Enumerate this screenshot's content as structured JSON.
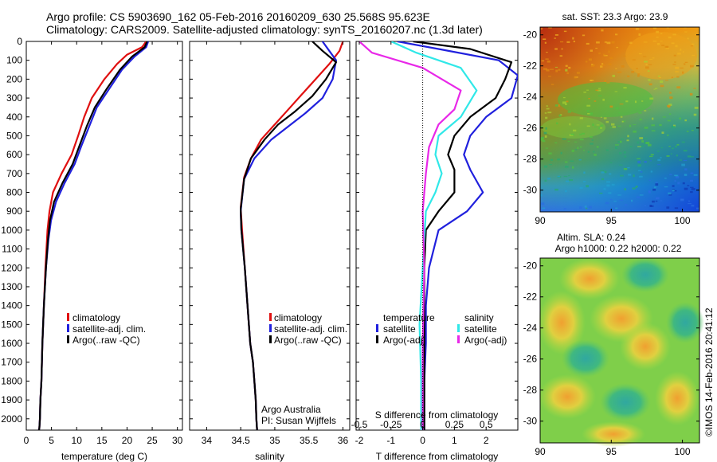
{
  "header": {
    "line1": "Argo profile: CS 5903690_162 05-Feb-2016 20160209_630 25.568S 95.623E",
    "line2": "Climatology: CARS2009. Satellite-adjusted climatology: synTS_20160207.nc (1.3d later)"
  },
  "colors": {
    "climatology": "#e01010",
    "satellite": "#2020dd",
    "argo": "#000000",
    "satellite_salinity": "#30e8e8",
    "argo_salinity": "#e828e8"
  },
  "chart_data": [
    {
      "type": "line",
      "panel": "temperature",
      "xlabel": "temperature (deg C)",
      "ylabel": "",
      "xlim": [
        0,
        31
      ],
      "ylim": [
        2060,
        0
      ],
      "xticks": [
        "0",
        "5",
        "10",
        "15",
        "20",
        "25",
        "30"
      ],
      "yticks": [
        "0",
        "100",
        "200",
        "300",
        "400",
        "500",
        "600",
        "700",
        "800",
        "900",
        "1000",
        "1100",
        "1200",
        "1300",
        "1400",
        "1500",
        "1600",
        "1700",
        "1800",
        "1900",
        "2000"
      ],
      "legend": [
        "climatology",
        "satellite-adj. clim.",
        "Argo(..raw -QC)"
      ],
      "series": [
        {
          "name": "climatology",
          "color": "#e01010",
          "x": [
            23.8,
            23.0,
            20.0,
            18.0,
            15.5,
            13.0,
            11.5,
            10.3,
            9.0,
            7.0,
            5.3,
            4.6,
            4.2,
            3.8,
            3.5,
            3.2,
            3.0,
            2.8,
            2.7,
            2.6,
            2.5,
            2.5
          ],
          "y": [
            0,
            30,
            70,
            120,
            200,
            300,
            400,
            500,
            600,
            700,
            800,
            900,
            1000,
            1200,
            1400,
            1600,
            1800,
            1900,
            2000,
            2050,
            2060,
            2060
          ]
        },
        {
          "name": "satellite-adj. clim.",
          "color": "#2020dd",
          "x": [
            24.2,
            23.8,
            21.5,
            19.0,
            16.5,
            14.0,
            12.5,
            11.0,
            9.6,
            7.6,
            5.9,
            4.9,
            4.4,
            3.9,
            3.5,
            3.2,
            3.0,
            2.8,
            2.7,
            2.6,
            2.5,
            2.5
          ],
          "y": [
            0,
            30,
            80,
            150,
            250,
            350,
            450,
            550,
            650,
            750,
            850,
            950,
            1050,
            1200,
            1400,
            1600,
            1800,
            1900,
            2000,
            2050,
            2060,
            2060
          ]
        },
        {
          "name": "Argo(..raw -QC)",
          "color": "#000000",
          "x": [
            24.0,
            23.5,
            21.0,
            18.6,
            16.0,
            13.6,
            12.0,
            10.6,
            9.2,
            7.2,
            5.5,
            4.7,
            4.3,
            3.9,
            3.5,
            3.2,
            3.0,
            2.8,
            2.7,
            2.6,
            2.5
          ],
          "y": [
            0,
            30,
            80,
            150,
            250,
            350,
            450,
            550,
            650,
            750,
            850,
            950,
            1050,
            1200,
            1400,
            1600,
            1800,
            1900,
            2000,
            2050,
            2060
          ]
        }
      ]
    },
    {
      "type": "line",
      "panel": "salinity",
      "xlabel": "salinity",
      "xlim": [
        33.75,
        36.1
      ],
      "ylim": [
        2060,
        0
      ],
      "xticks": [
        "34",
        "34.5",
        "35",
        "35.5",
        "36"
      ],
      "legend": [
        "climatology",
        "satellite-adj. clim.",
        "Argo(..raw -QC)"
      ],
      "annotations": [
        "Argo Australia",
        "PI: Susan Wijffels"
      ],
      "series": [
        {
          "name": "climatology",
          "color": "#e01010",
          "x": [
            36.0,
            35.95,
            35.8,
            35.6,
            35.4,
            35.2,
            35.0,
            34.8,
            34.65,
            34.55,
            34.5,
            34.52,
            34.56,
            34.6,
            34.64,
            34.68,
            34.7,
            34.72,
            34.73,
            34.74
          ],
          "y": [
            0,
            50,
            120,
            200,
            280,
            360,
            440,
            520,
            620,
            720,
            880,
            1000,
            1200,
            1400,
            1600,
            1700,
            1800,
            1900,
            2000,
            2060
          ]
        },
        {
          "name": "satellite-adj. clim.",
          "color": "#2020dd",
          "x": [
            35.7,
            35.8,
            35.9,
            35.85,
            35.7,
            35.45,
            35.2,
            34.95,
            34.7,
            34.55,
            34.5,
            34.51,
            34.56,
            34.6,
            34.64,
            34.68,
            34.7,
            34.72,
            34.73,
            34.74
          ],
          "y": [
            0,
            50,
            100,
            200,
            300,
            380,
            450,
            520,
            620,
            730,
            900,
            1000,
            1200,
            1400,
            1600,
            1700,
            1800,
            1900,
            2000,
            2060
          ]
        },
        {
          "name": "Argo(..raw -QC)",
          "color": "#000000",
          "x": [
            35.55,
            35.7,
            35.9,
            35.75,
            35.55,
            35.3,
            35.05,
            34.85,
            34.65,
            34.55,
            34.5,
            34.51,
            34.56,
            34.6,
            34.64,
            34.68,
            34.7,
            34.72,
            34.73,
            34.74
          ],
          "y": [
            0,
            50,
            110,
            200,
            290,
            370,
            440,
            520,
            620,
            730,
            890,
            1000,
            1200,
            1400,
            1600,
            1700,
            1800,
            1900,
            2000,
            2060
          ]
        }
      ]
    },
    {
      "type": "line",
      "panel": "difference",
      "xlabel": "T difference from climatology",
      "top_label": "S difference from climatology",
      "xlim": [
        -2.1,
        3.0
      ],
      "ylim": [
        2060,
        0
      ],
      "xticks": [
        "-2",
        "-1",
        "0",
        "1",
        "2"
      ],
      "top_ticks": [
        "-0.5",
        "-0.25",
        "0",
        "0.25",
        "0.5"
      ],
      "legend_titles": [
        "temperature",
        "salinity"
      ],
      "legend": [
        "satellite",
        "Argo(-adj)",
        "satellite",
        "Argo(-adj)"
      ],
      "series": [
        {
          "name": "satellite",
          "group": "temperature",
          "color": "#2020dd",
          "x": [
            -0.8,
            0.5,
            2.4,
            3.0,
            2.8,
            2.0,
            1.5,
            1.3,
            1.5,
            1.9,
            1.4,
            0.5,
            0.2,
            0.1,
            0.1,
            0.05,
            0.05,
            0.05
          ],
          "y": [
            0,
            40,
            100,
            180,
            300,
            400,
            500,
            600,
            680,
            800,
            900,
            1000,
            1200,
            1400,
            1600,
            1800,
            2000,
            2060
          ]
        },
        {
          "name": "Argo(-adj)",
          "group": "temperature",
          "color": "#000000",
          "x": [
            -0.3,
            1.5,
            2.8,
            2.6,
            2.3,
            1.5,
            1.0,
            0.8,
            1.0,
            1.0,
            0.5,
            0.1,
            0.05,
            0.05,
            0.05,
            0.05,
            0.05,
            0.05
          ],
          "y": [
            0,
            40,
            110,
            200,
            300,
            400,
            500,
            600,
            680,
            800,
            900,
            1000,
            1200,
            1400,
            1600,
            1800,
            2000,
            2060
          ]
        },
        {
          "name": "satellite",
          "group": "salinity",
          "color": "#30e8e8",
          "x": [
            -1.0,
            -0.2,
            1.2,
            1.7,
            1.2,
            0.5,
            0.4,
            0.6,
            0.4,
            0.1,
            0.0,
            -0.1,
            -0.05,
            -0.05
          ],
          "y": [
            0,
            60,
            140,
            260,
            400,
            500,
            600,
            700,
            800,
            900,
            1200,
            1500,
            1800,
            2060
          ]
        },
        {
          "name": "Argo(-adj)",
          "group": "salinity",
          "color": "#e828e8",
          "x": [
            -2.0,
            -1.6,
            0.0,
            1.2,
            1.0,
            0.5,
            0.2,
            0.1,
            0.0,
            0.05,
            0.0,
            0.0
          ],
          "y": [
            0,
            60,
            140,
            260,
            360,
            440,
            560,
            700,
            900,
            1200,
            1600,
            2060
          ]
        }
      ]
    },
    {
      "type": "heatmap",
      "panel": "sst",
      "title": "sat. SST: 23.3 Argo: 23.9",
      "xticks": [
        "90",
        "95",
        "100"
      ],
      "yticks": [
        "-20",
        "-22",
        "-24",
        "-26",
        "-28",
        "-30"
      ],
      "xlim": [
        90,
        101.2
      ],
      "ylim": [
        -31.4,
        -19.5
      ]
    },
    {
      "type": "heatmap",
      "panel": "sla",
      "title": "Altim. SLA: 0.24",
      "subtitle": "Argo h1000: 0.22 h2000: 0.22",
      "xticks": [
        "90",
        "95",
        "100"
      ],
      "yticks": [
        "-20",
        "-22",
        "-24",
        "-26",
        "-28",
        "-30"
      ],
      "xlim": [
        90,
        101.2
      ],
      "ylim": [
        -31.4,
        -19.5
      ]
    }
  ],
  "credit": "©IMOS 14-Feb-2016 20:41:12"
}
